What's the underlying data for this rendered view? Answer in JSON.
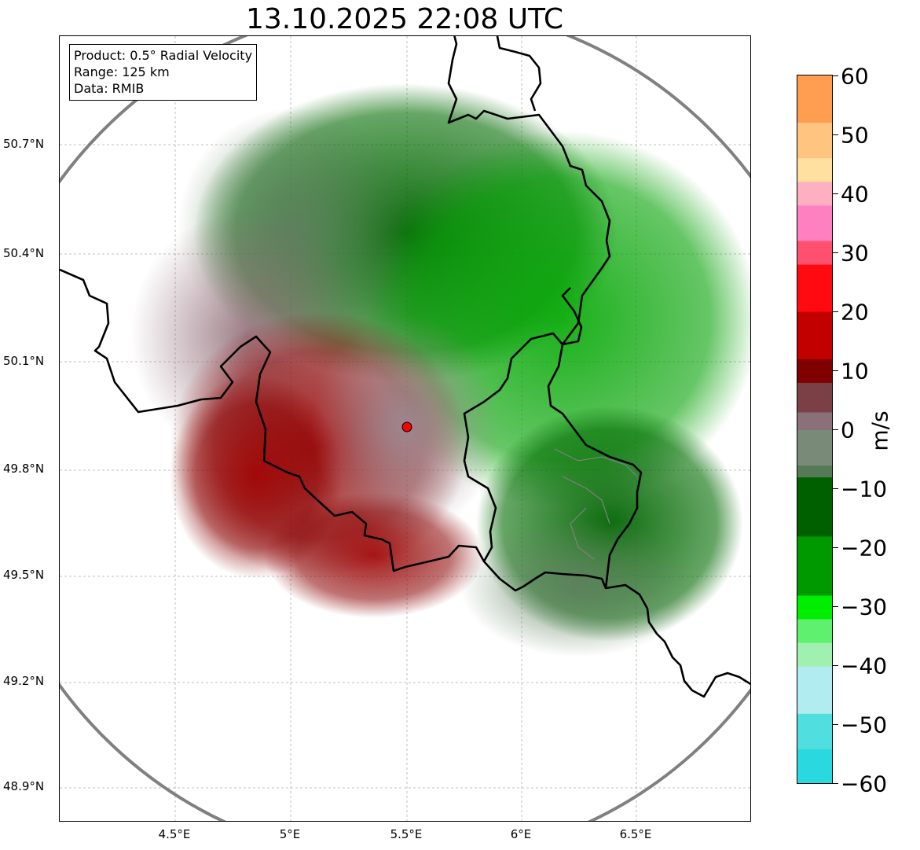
{
  "title": "13.10.2025 22:08 UTC",
  "info": {
    "product": "Product: 0.5° Radial Velocity",
    "range": "Range: 125 km",
    "source": "Data: RMIB"
  },
  "axes": {
    "lat_labels": [
      "50.7°N",
      "50.4°N",
      "50.1°N",
      "49.8°N",
      "49.5°N",
      "49.2°N",
      "48.9°N"
    ],
    "lon_labels": [
      "4.5°E",
      "5°E",
      "5.5°E",
      "6°E",
      "6.5°E"
    ]
  },
  "colorbar": {
    "unit": "m/s",
    "tick_labels": [
      "60",
      "50",
      "40",
      "30",
      "20",
      "10",
      "0",
      "−10",
      "−20",
      "−30",
      "−40",
      "−50",
      "−60"
    ],
    "range": [
      -60,
      60
    ],
    "stops": [
      {
        "v": 60,
        "color": "#ff9e50"
      },
      {
        "v": 52,
        "color": "#ffc580"
      },
      {
        "v": 46,
        "color": "#ffe0a0"
      },
      {
        "v": 42,
        "color": "#ffb0c0"
      },
      {
        "v": 38,
        "color": "#ff80c0"
      },
      {
        "v": 32,
        "color": "#ff5070"
      },
      {
        "v": 28,
        "color": "#ff0a10"
      },
      {
        "v": 20,
        "color": "#c20000"
      },
      {
        "v": 12,
        "color": "#800000"
      },
      {
        "v": 8,
        "color": "#7a4046"
      },
      {
        "v": 3,
        "color": "#8a7078"
      },
      {
        "v": 0,
        "color": "#7a8a78"
      },
      {
        "v": -6,
        "color": "#557a55"
      },
      {
        "v": -8,
        "color": "#006000"
      },
      {
        "v": -18,
        "color": "#009a00"
      },
      {
        "v": -28,
        "color": "#00ee00"
      },
      {
        "v": -32,
        "color": "#60f070"
      },
      {
        "v": -36,
        "color": "#a0f0b0"
      },
      {
        "v": -40,
        "color": "#b0ecf0"
      },
      {
        "v": -48,
        "color": "#50dede"
      },
      {
        "v": -54,
        "color": "#2ad8e0"
      },
      {
        "v": -60,
        "color": "#2478c0"
      }
    ]
  },
  "map": {
    "radar_site": {
      "lon": 5.5,
      "lat": 49.915
    },
    "range_ring_color": "#808080",
    "site_color": "#ff0000"
  }
}
